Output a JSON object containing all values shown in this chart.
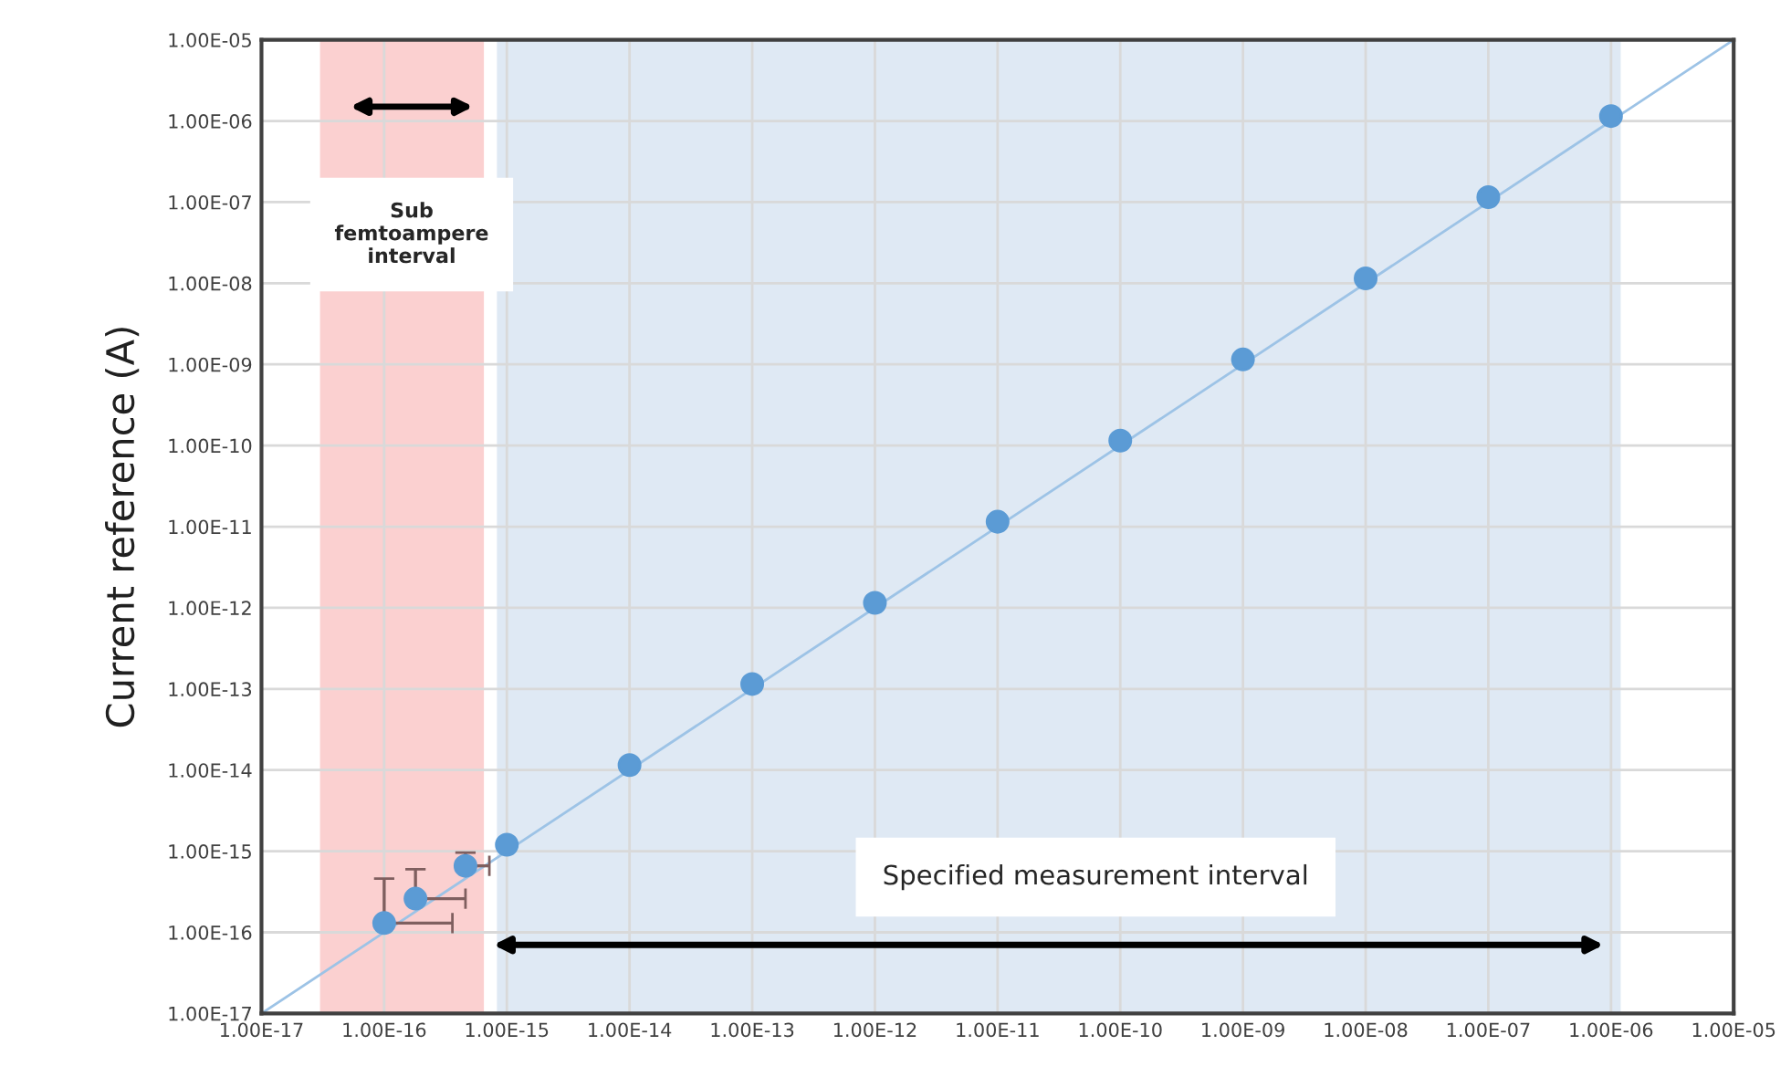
{
  "chart_data": {
    "type": "scatter",
    "ylabel": "Current reference (A)",
    "x": [
      1e-16,
      1.8e-16,
      4.6e-16,
      1e-15,
      1e-14,
      1e-13,
      1e-12,
      1e-11,
      1e-10,
      1e-09,
      1e-08,
      1e-07,
      1e-06
    ],
    "series": [
      {
        "color": "#5b9bd5",
        "marker": "circle",
        "values": [
          1.3e-16,
          2.6e-16,
          6.6e-16,
          1.2e-15,
          1.15e-14,
          1.15e-13,
          1.15e-12,
          1.15e-11,
          1.15e-10,
          1.15e-09,
          1.15e-08,
          1.15e-07,
          1.15e-06
        ],
        "errors": [
          [
            1.3e-16,
            4.6e-16
          ],
          [
            2.6e-16,
            6e-16
          ],
          [
            6.6e-16,
            9.6e-16
          ],
          null,
          null,
          null,
          null,
          null,
          null,
          null,
          null,
          null,
          null
        ],
        "xerrors": [
          [
            1e-16,
            3.6e-16
          ],
          [
            1.8e-16,
            4.6e-16
          ],
          [
            4.6e-16,
            7.2e-16
          ],
          null,
          null,
          null,
          null,
          null,
          null,
          null,
          null,
          null,
          null
        ]
      },
      {
        "type": "line",
        "color": "#9dc3e6",
        "x": [
          1e-17,
          1e-05
        ],
        "values": [
          1e-17,
          1e-05
        ]
      }
    ],
    "bands": [
      {
        "axis": "x",
        "from": 3e-17,
        "to": 6.5e-16,
        "label": "Sub femtoampere interval",
        "color": "#fbd0d0"
      },
      {
        "axis": "x",
        "from": 8.3e-16,
        "to": 1.2e-06,
        "label": "Specified measurement interval",
        "color": "#dfe9f4"
      }
    ],
    "log": "xy",
    "xlim": [
      1e-17,
      1e-05
    ],
    "ylim": [
      1e-17,
      1e-05
    ],
    "xticks": [
      {
        "value": 1e-17,
        "label": "1.00E-17"
      },
      {
        "value": 1e-16,
        "label": "1.00E-16"
      },
      {
        "value": 1e-15,
        "label": "1.00E-15"
      },
      {
        "value": 1e-14,
        "label": "1.00E-14"
      },
      {
        "value": 1e-13,
        "label": "1.00E-13"
      },
      {
        "value": 1e-12,
        "label": "1.00E-12"
      },
      {
        "value": 1e-11,
        "label": "1.00E-11"
      },
      {
        "value": 1e-10,
        "label": "1.00E-10"
      },
      {
        "value": 1e-09,
        "label": "1.00E-09"
      },
      {
        "value": 1e-08,
        "label": "1.00E-08"
      },
      {
        "value": 1e-07,
        "label": "1.00E-07"
      },
      {
        "value": 1e-06,
        "label": "1.00E-06"
      },
      {
        "value": 1e-05,
        "label": "1.00E-05"
      }
    ],
    "yticks": [
      {
        "value": 1e-17,
        "label": "1.00E-17"
      },
      {
        "value": 1e-16,
        "label": "1.00E-16"
      },
      {
        "value": 1e-15,
        "label": "1.00E-15"
      },
      {
        "value": 1e-14,
        "label": "1.00E-14"
      },
      {
        "value": 1e-13,
        "label": "1.00E-13"
      },
      {
        "value": 1e-12,
        "label": "1.00E-12"
      },
      {
        "value": 1e-11,
        "label": "1.00E-11"
      },
      {
        "value": 1e-10,
        "label": "1.00E-10"
      },
      {
        "value": 1e-09,
        "label": "1.00E-09"
      },
      {
        "value": 1e-08,
        "label": "1.00E-08"
      },
      {
        "value": 1e-07,
        "label": "1.00E-07"
      },
      {
        "value": 1e-06,
        "label": "1.00E-06"
      },
      {
        "value": 1e-05,
        "label": "1.00E-05"
      }
    ],
    "grid": true,
    "legend": false
  }
}
